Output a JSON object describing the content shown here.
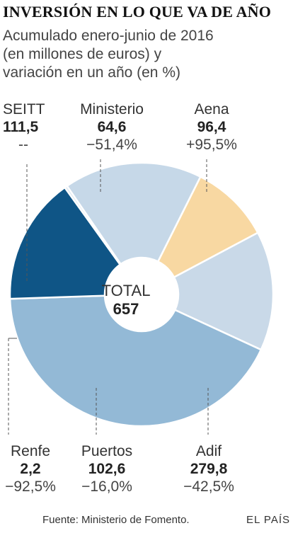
{
  "header": {
    "title": "INVERSIÓN EN LO QUE VA DE AÑO",
    "subtitle_lines": [
      "Acumulado enero-junio de 2016",
      "(en millones de euros) y",
      "variación en un año (en %)"
    ]
  },
  "center": {
    "label": "TOTAL",
    "value": "657"
  },
  "footer": {
    "source": "Fuente: Ministerio de Fomento.",
    "brand": "EL PAÍS"
  },
  "colors": {
    "Aena": "#c9d9e8",
    "Adif": "#93b9d6",
    "Puertos": "#0f5586",
    "Renfe": "#dce7f0",
    "SEITT": "#c6d8e8",
    "Ministerio": "#f8d8a2",
    "leader": "#555555",
    "separator": "#ffffff"
  },
  "chart_data": {
    "type": "pie",
    "total": 657,
    "slices": [
      {
        "name": "Aena",
        "value": 96.4,
        "value_label": "96,4",
        "change": "+95,5%"
      },
      {
        "name": "Adif",
        "value": 279.8,
        "value_label": "279,8",
        "change": "−42,5%"
      },
      {
        "name": "Puertos",
        "value": 102.6,
        "value_label": "102,6",
        "change": "−16,0%"
      },
      {
        "name": "Renfe",
        "value": 2.2,
        "value_label": "2,2",
        "change": "−92,5%"
      },
      {
        "name": "SEITT",
        "value": 111.5,
        "value_label": "111,5",
        "change": "--"
      },
      {
        "name": "Ministerio",
        "value": 64.6,
        "value_label": "64,6",
        "change": "−51,4%"
      }
    ]
  }
}
